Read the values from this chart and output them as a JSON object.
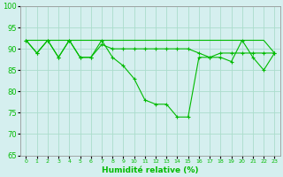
{
  "x": [
    0,
    1,
    2,
    3,
    4,
    5,
    6,
    7,
    8,
    9,
    10,
    11,
    12,
    13,
    14,
    15,
    16,
    17,
    18,
    19,
    20,
    21,
    22,
    23
  ],
  "line1_data": [
    92,
    89,
    92,
    88,
    92,
    88,
    88,
    92,
    88,
    86,
    83,
    78,
    77,
    77,
    74,
    74,
    88,
    88,
    88,
    87,
    92,
    88,
    85,
    89
  ],
  "line2_data": [
    92,
    89,
    92,
    88,
    92,
    88,
    88,
    91,
    90,
    90,
    90,
    90,
    90,
    90,
    90,
    90,
    89,
    88,
    89,
    89,
    89,
    89,
    89,
    89
  ],
  "line3_data": [
    92,
    92,
    92,
    92,
    92,
    92,
    92,
    92,
    92,
    92,
    92,
    92,
    92,
    92,
    92,
    92,
    92,
    92,
    92,
    92,
    92,
    92,
    92,
    89
  ],
  "ylim": [
    65,
    100
  ],
  "yticks": [
    65,
    70,
    75,
    80,
    85,
    90,
    95,
    100
  ],
  "xlabel": "Humidité relative (%)",
  "bg_color": "#d5efef",
  "grid_color": "#aaddcc",
  "line_color": "#00bb00",
  "ytick_fontsize": 6,
  "xtick_fontsize": 4.5,
  "xlabel_fontsize": 6.5
}
